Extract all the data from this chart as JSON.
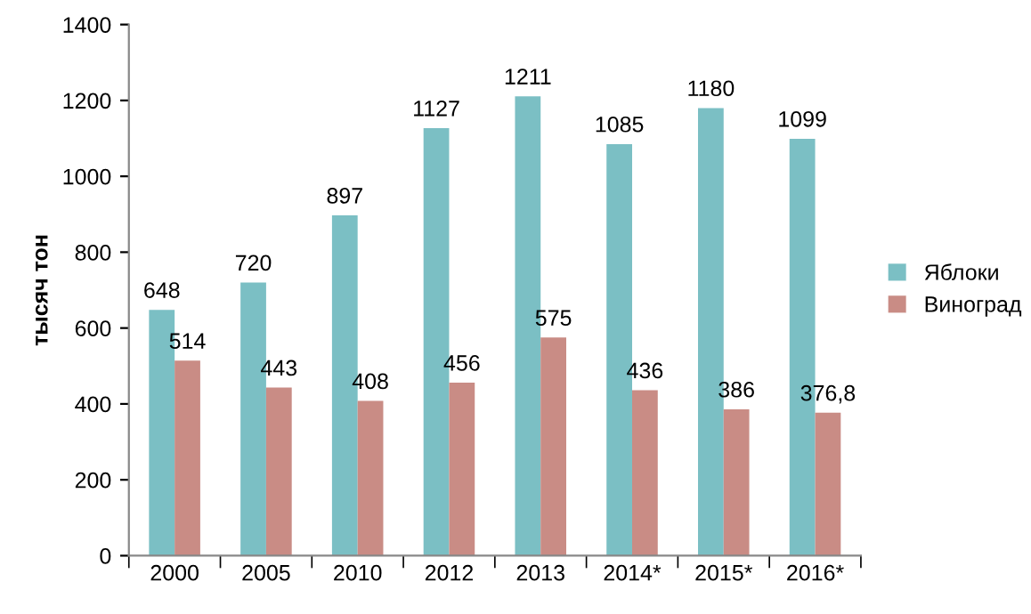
{
  "chart_data": {
    "type": "bar",
    "ylabel": "тысяч тон",
    "categories": [
      "2000",
      "2005",
      "2010",
      "2012",
      "2013",
      "2014*",
      "2015*",
      "2016*"
    ],
    "series": [
      {
        "name": "Яблоки",
        "color": "#7bbfc4",
        "values": [
          648,
          720,
          897,
          1127,
          1211,
          1085,
          1180,
          1099
        ],
        "value_labels": [
          "648",
          "720",
          "897",
          "1127",
          "1211",
          "1085",
          "1180",
          "1099"
        ]
      },
      {
        "name": "Виноград",
        "color": "#c98c85",
        "values": [
          514,
          443,
          408,
          456,
          575,
          436,
          386,
          376.8
        ],
        "value_labels": [
          "514",
          "443",
          "408",
          "456",
          "575",
          "436",
          "386",
          "376,8"
        ]
      }
    ],
    "ylim": [
      0,
      1400
    ],
    "yticks": [
      0,
      200,
      400,
      600,
      800,
      1000,
      1200,
      1400
    ],
    "grid": false,
    "legend": "right"
  }
}
